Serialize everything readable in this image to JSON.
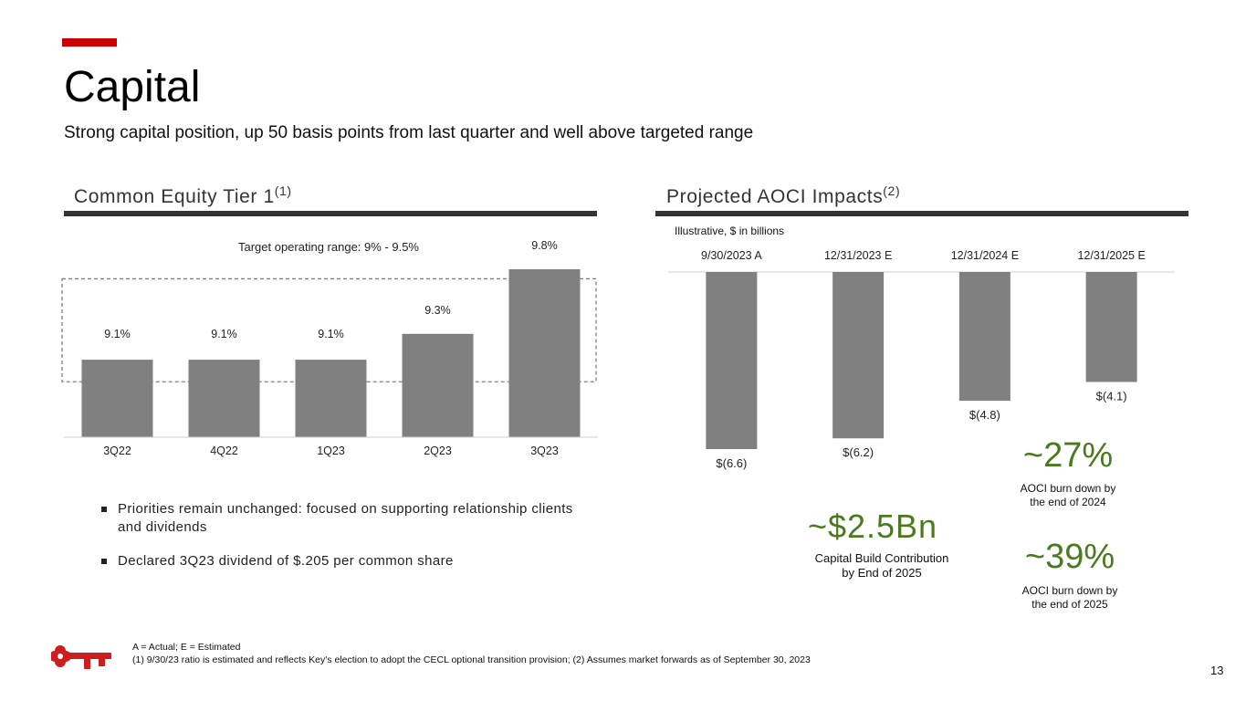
{
  "header": {
    "title": "Capital",
    "subtitle": "Strong capital position, up 50 basis points from last quarter and well above targeted range"
  },
  "colors": {
    "accent": "#cc0000",
    "bar": "#808080",
    "rule": "#333333",
    "highlight": "#4b7a1e"
  },
  "left_section": {
    "title": "Common Equity Tier 1",
    "title_sup": "(1)",
    "target_label": "Target operating range: 9% - 9.5%"
  },
  "right_section": {
    "title": "Projected AOCI Impacts",
    "title_sup": "(2)",
    "note": "Illustrative, $ in billions"
  },
  "chart_data": [
    {
      "type": "bar",
      "title": "Common Equity Tier 1",
      "categories": [
        "3Q22",
        "4Q22",
        "1Q23",
        "2Q23",
        "3Q23"
      ],
      "values": [
        9.1,
        9.1,
        9.1,
        9.3,
        9.8
      ],
      "value_labels": [
        "9.1%",
        "9.1%",
        "9.1%",
        "9.3%",
        "9.8%"
      ],
      "target_range": [
        9.0,
        9.5
      ],
      "ylim": [
        8.5,
        9.8
      ],
      "xlabel": "",
      "ylabel": ""
    },
    {
      "type": "bar",
      "title": "Projected AOCI Impacts",
      "categories": [
        "9/30/2023 A",
        "12/31/2023 E",
        "12/31/2024 E",
        "12/31/2025 E"
      ],
      "values": [
        -6.6,
        -6.2,
        -4.8,
        -4.1
      ],
      "value_labels": [
        "$(6.6)",
        "$(6.2)",
        "$(4.8)",
        "$(4.1)"
      ],
      "ylim": [
        -6.6,
        0
      ],
      "xlabel": "",
      "ylabel": ""
    }
  ],
  "callouts": {
    "capital_build": {
      "value": "~$2.5Bn",
      "caption_line1": "Capital Build Contribution",
      "caption_line2": "by End of 2025"
    },
    "burn_2024": {
      "value": "~27%",
      "caption_line1": "AOCI burn down by",
      "caption_line2": "the end of 2024"
    },
    "burn_2025": {
      "value": "~39%",
      "caption_line1": "AOCI burn down by",
      "caption_line2": "the end of 2025"
    }
  },
  "bullets": [
    "Priorities remain unchanged: focused on supporting relationship clients and dividends",
    "Declared 3Q23 dividend of $.205 per common share"
  ],
  "footer": {
    "line1": "A = Actual; E = Estimated",
    "line2": "(1) 9/30/23 ratio is estimated and reflects Key's election to adopt the CECL optional transition provision; (2) Assumes market forwards as of September 30, 2023",
    "page_number": "13",
    "logo": "key-logo"
  }
}
